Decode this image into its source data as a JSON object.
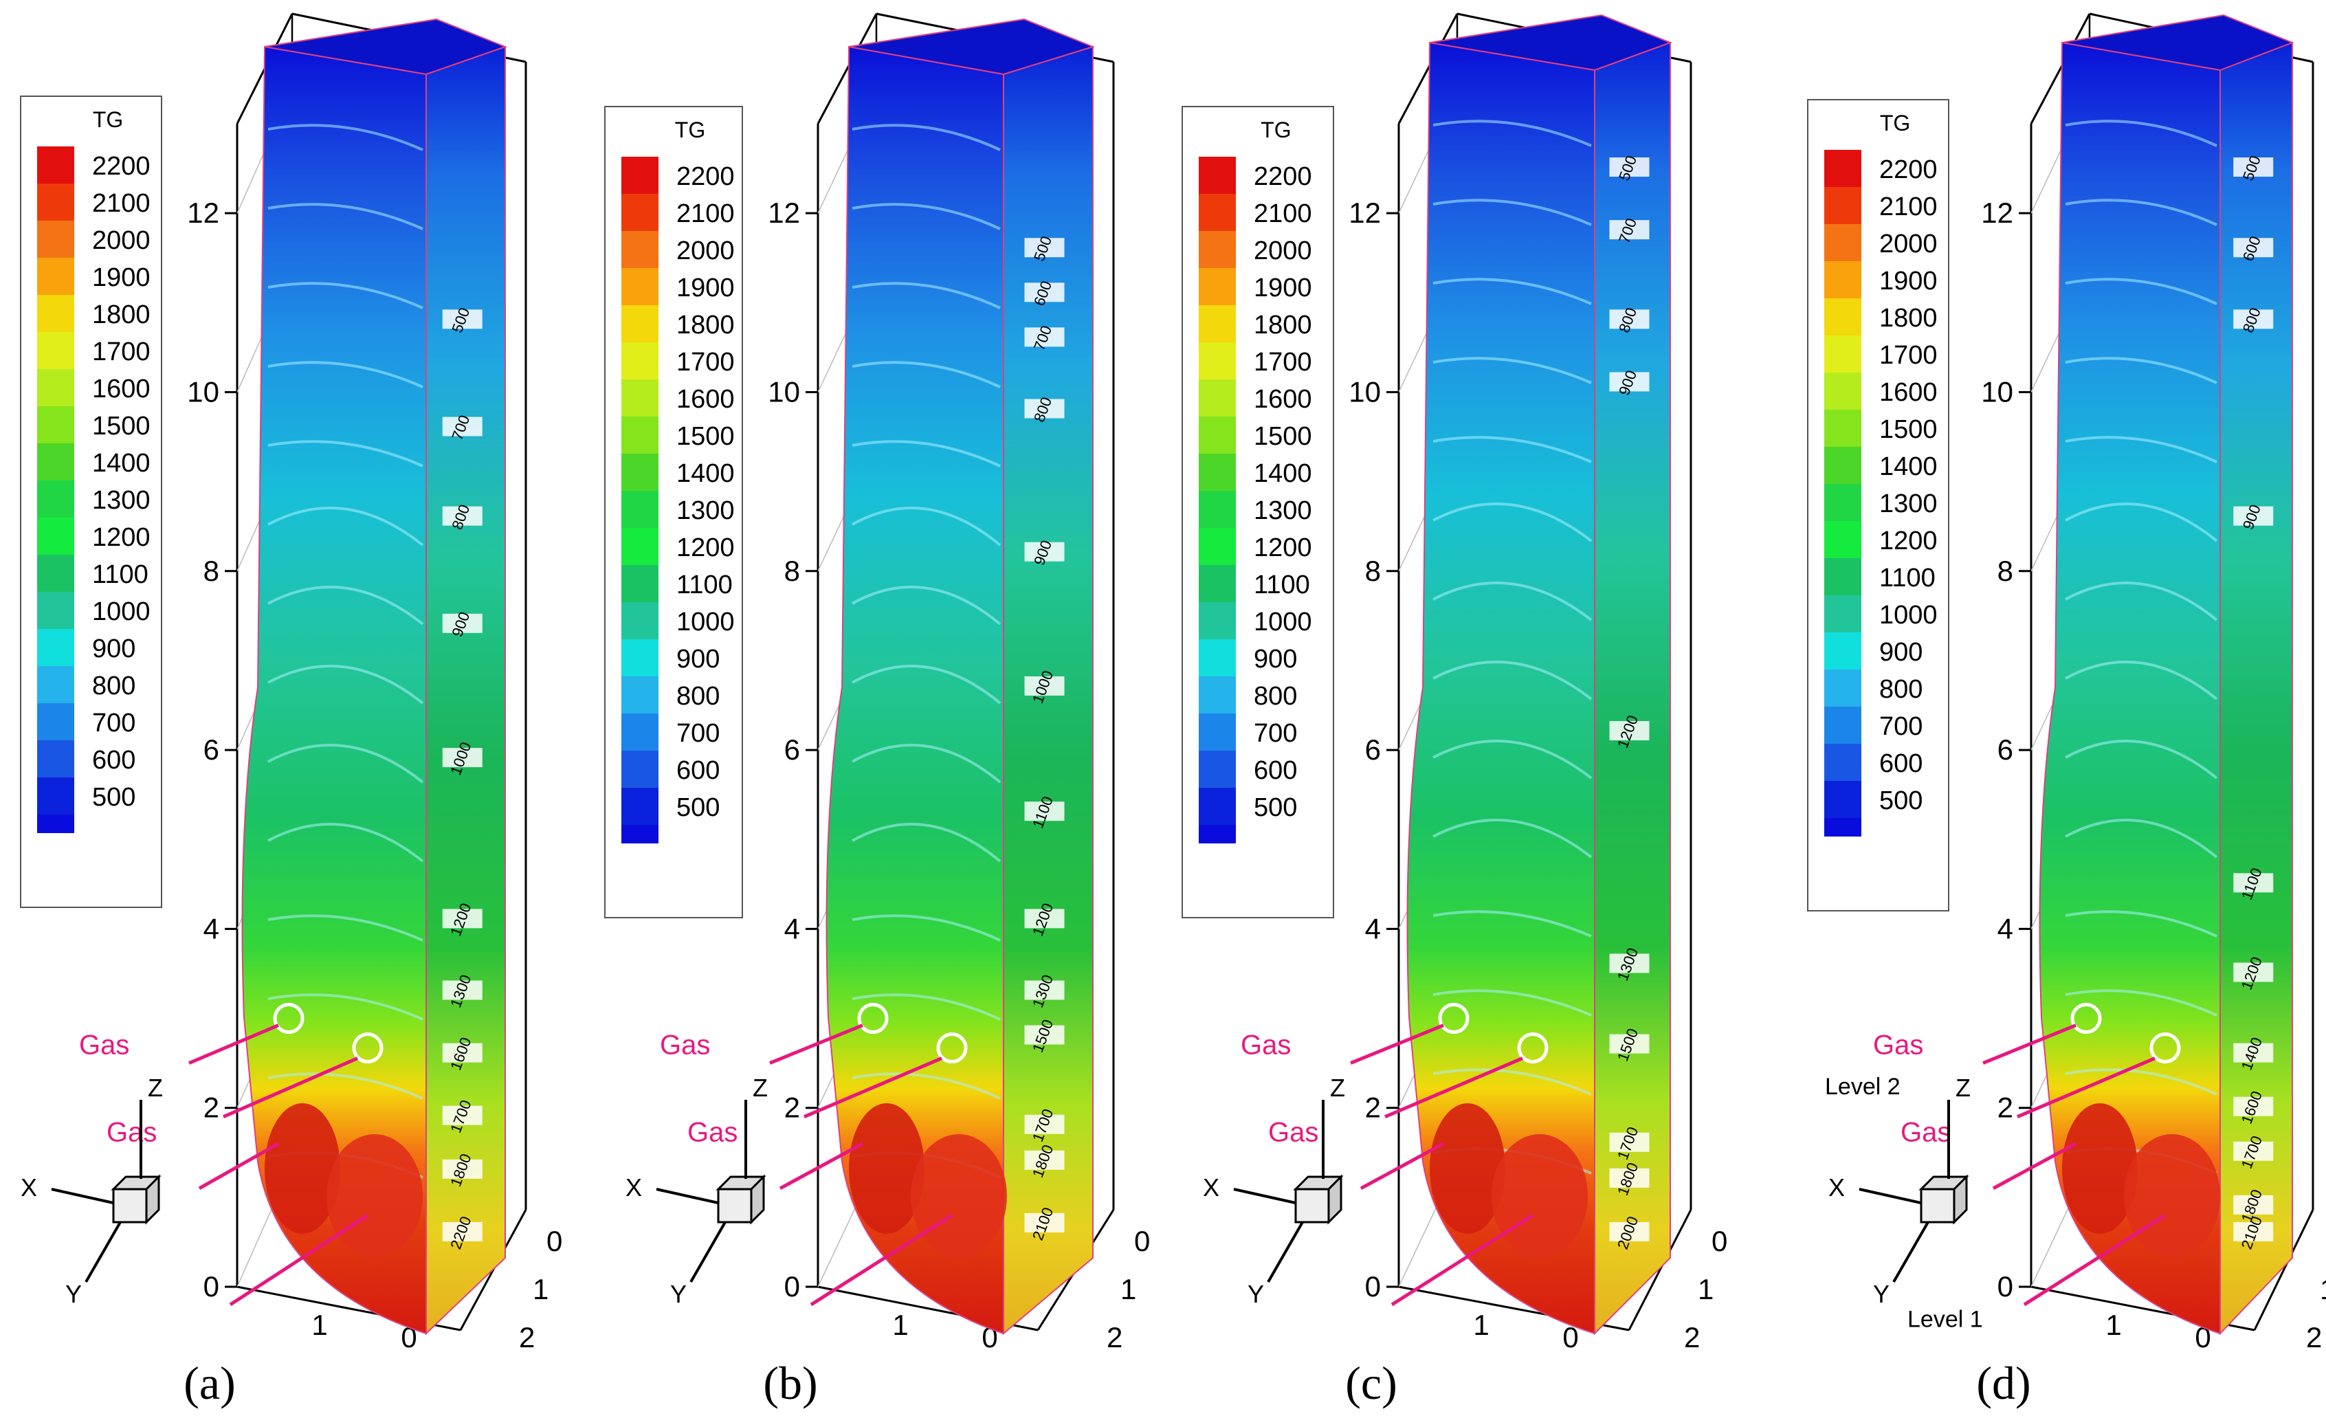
{
  "figure": {
    "legend_title": "TG",
    "legend_levels": [
      "2200",
      "2100",
      "2000",
      "1900",
      "1800",
      "1700",
      "1600",
      "1500",
      "1400",
      "1300",
      "1200",
      "1100",
      "1000",
      "900",
      "800",
      "700",
      "600",
      "500"
    ],
    "axes": {
      "x_label": "X",
      "y_label": "Y",
      "z_label": "Z"
    },
    "colors": {
      "scale": [
        "#e20f0f",
        "#ee3a0a",
        "#f47314",
        "#f9a20c",
        "#f3d80c",
        "#e2ee1a",
        "#b5ec1d",
        "#86e41c",
        "#4dd62a",
        "#20d645",
        "#15ea3f",
        "#1bc264",
        "#22c59a",
        "#11dfde",
        "#25b3ec",
        "#1c85ea",
        "#1a56e4",
        "#0a22db",
        "#0a0cde"
      ],
      "annotation": "#e8187f"
    }
  },
  "panels": [
    {
      "label": "a",
      "inlet_label": "Gas",
      "inlet_label_2": "Gas",
      "level_labels": [],
      "contour_labels": [
        {
          "value": "500",
          "z": 10.8
        },
        {
          "value": "700",
          "z": 9.6
        },
        {
          "value": "800",
          "z": 8.6
        },
        {
          "value": "900",
          "z": 7.4
        },
        {
          "value": "1000",
          "z": 5.9
        },
        {
          "value": "1200",
          "z": 4.1
        },
        {
          "value": "1300",
          "z": 3.3
        },
        {
          "value": "1600",
          "z": 2.6
        },
        {
          "value": "1700",
          "z": 1.9
        },
        {
          "value": "1800",
          "z": 1.3
        },
        {
          "value": "2200",
          "z": 0.6
        }
      ]
    },
    {
      "label": "b",
      "inlet_label": "Gas",
      "inlet_label_2": "Gas",
      "level_labels": [],
      "contour_labels": [
        {
          "value": "500",
          "z": 11.6
        },
        {
          "value": "600",
          "z": 11.1
        },
        {
          "value": "700",
          "z": 10.6
        },
        {
          "value": "800",
          "z": 9.8
        },
        {
          "value": "900",
          "z": 8.2
        },
        {
          "value": "1000",
          "z": 6.7
        },
        {
          "value": "1100",
          "z": 5.3
        },
        {
          "value": "1200",
          "z": 4.1
        },
        {
          "value": "1300",
          "z": 3.3
        },
        {
          "value": "1500",
          "z": 2.8
        },
        {
          "value": "1700",
          "z": 1.8
        },
        {
          "value": "1800",
          "z": 1.4
        },
        {
          "value": "2100",
          "z": 0.7
        }
      ]
    },
    {
      "label": "c",
      "inlet_label": "Gas",
      "inlet_label_2": "Gas",
      "level_labels": [],
      "contour_labels": [
        {
          "value": "500",
          "z": 12.5
        },
        {
          "value": "700",
          "z": 11.8
        },
        {
          "value": "800",
          "z": 10.8
        },
        {
          "value": "900",
          "z": 10.1
        },
        {
          "value": "1200",
          "z": 6.2
        },
        {
          "value": "1300",
          "z": 3.6
        },
        {
          "value": "1500",
          "z": 2.7
        },
        {
          "value": "1700",
          "z": 1.6
        },
        {
          "value": "1800",
          "z": 1.2
        },
        {
          "value": "2000",
          "z": 0.6
        }
      ]
    },
    {
      "label": "d",
      "inlet_label": "Gas",
      "inlet_label_2": "Gas",
      "level_labels": [
        "Level 2",
        "Level 1"
      ],
      "contour_labels": [
        {
          "value": "500",
          "z": 12.5
        },
        {
          "value": "600",
          "z": 11.6
        },
        {
          "value": "800",
          "z": 10.8
        },
        {
          "value": "900",
          "z": 8.6
        },
        {
          "value": "1100",
          "z": 4.5
        },
        {
          "value": "1200",
          "z": 3.5
        },
        {
          "value": "1400",
          "z": 2.6
        },
        {
          "value": "1600",
          "z": 2.0
        },
        {
          "value": "1700",
          "z": 1.5
        },
        {
          "value": "1800",
          "z": 0.9
        },
        {
          "value": "2100",
          "z": 0.6
        }
      ]
    }
  ],
  "chart_data": {
    "type": "heatmap",
    "title": "",
    "variable": "TG",
    "colorbar_levels": [
      500,
      600,
      700,
      800,
      900,
      1000,
      1100,
      1200,
      1300,
      1400,
      1500,
      1600,
      1700,
      1800,
      1900,
      2000,
      2100,
      2200
    ],
    "z_axis": {
      "label": "Z",
      "ticks": [
        0,
        2,
        4,
        6,
        8,
        10,
        12
      ],
      "range": [
        0,
        13
      ]
    },
    "x_axis": {
      "label": "X",
      "ticks": [
        0,
        1
      ]
    },
    "y_axis": {
      "label": "Y",
      "ticks": [
        0,
        1,
        2
      ]
    },
    "panels": [
      "(a)",
      "(b)",
      "(c)",
      "(d)"
    ]
  }
}
